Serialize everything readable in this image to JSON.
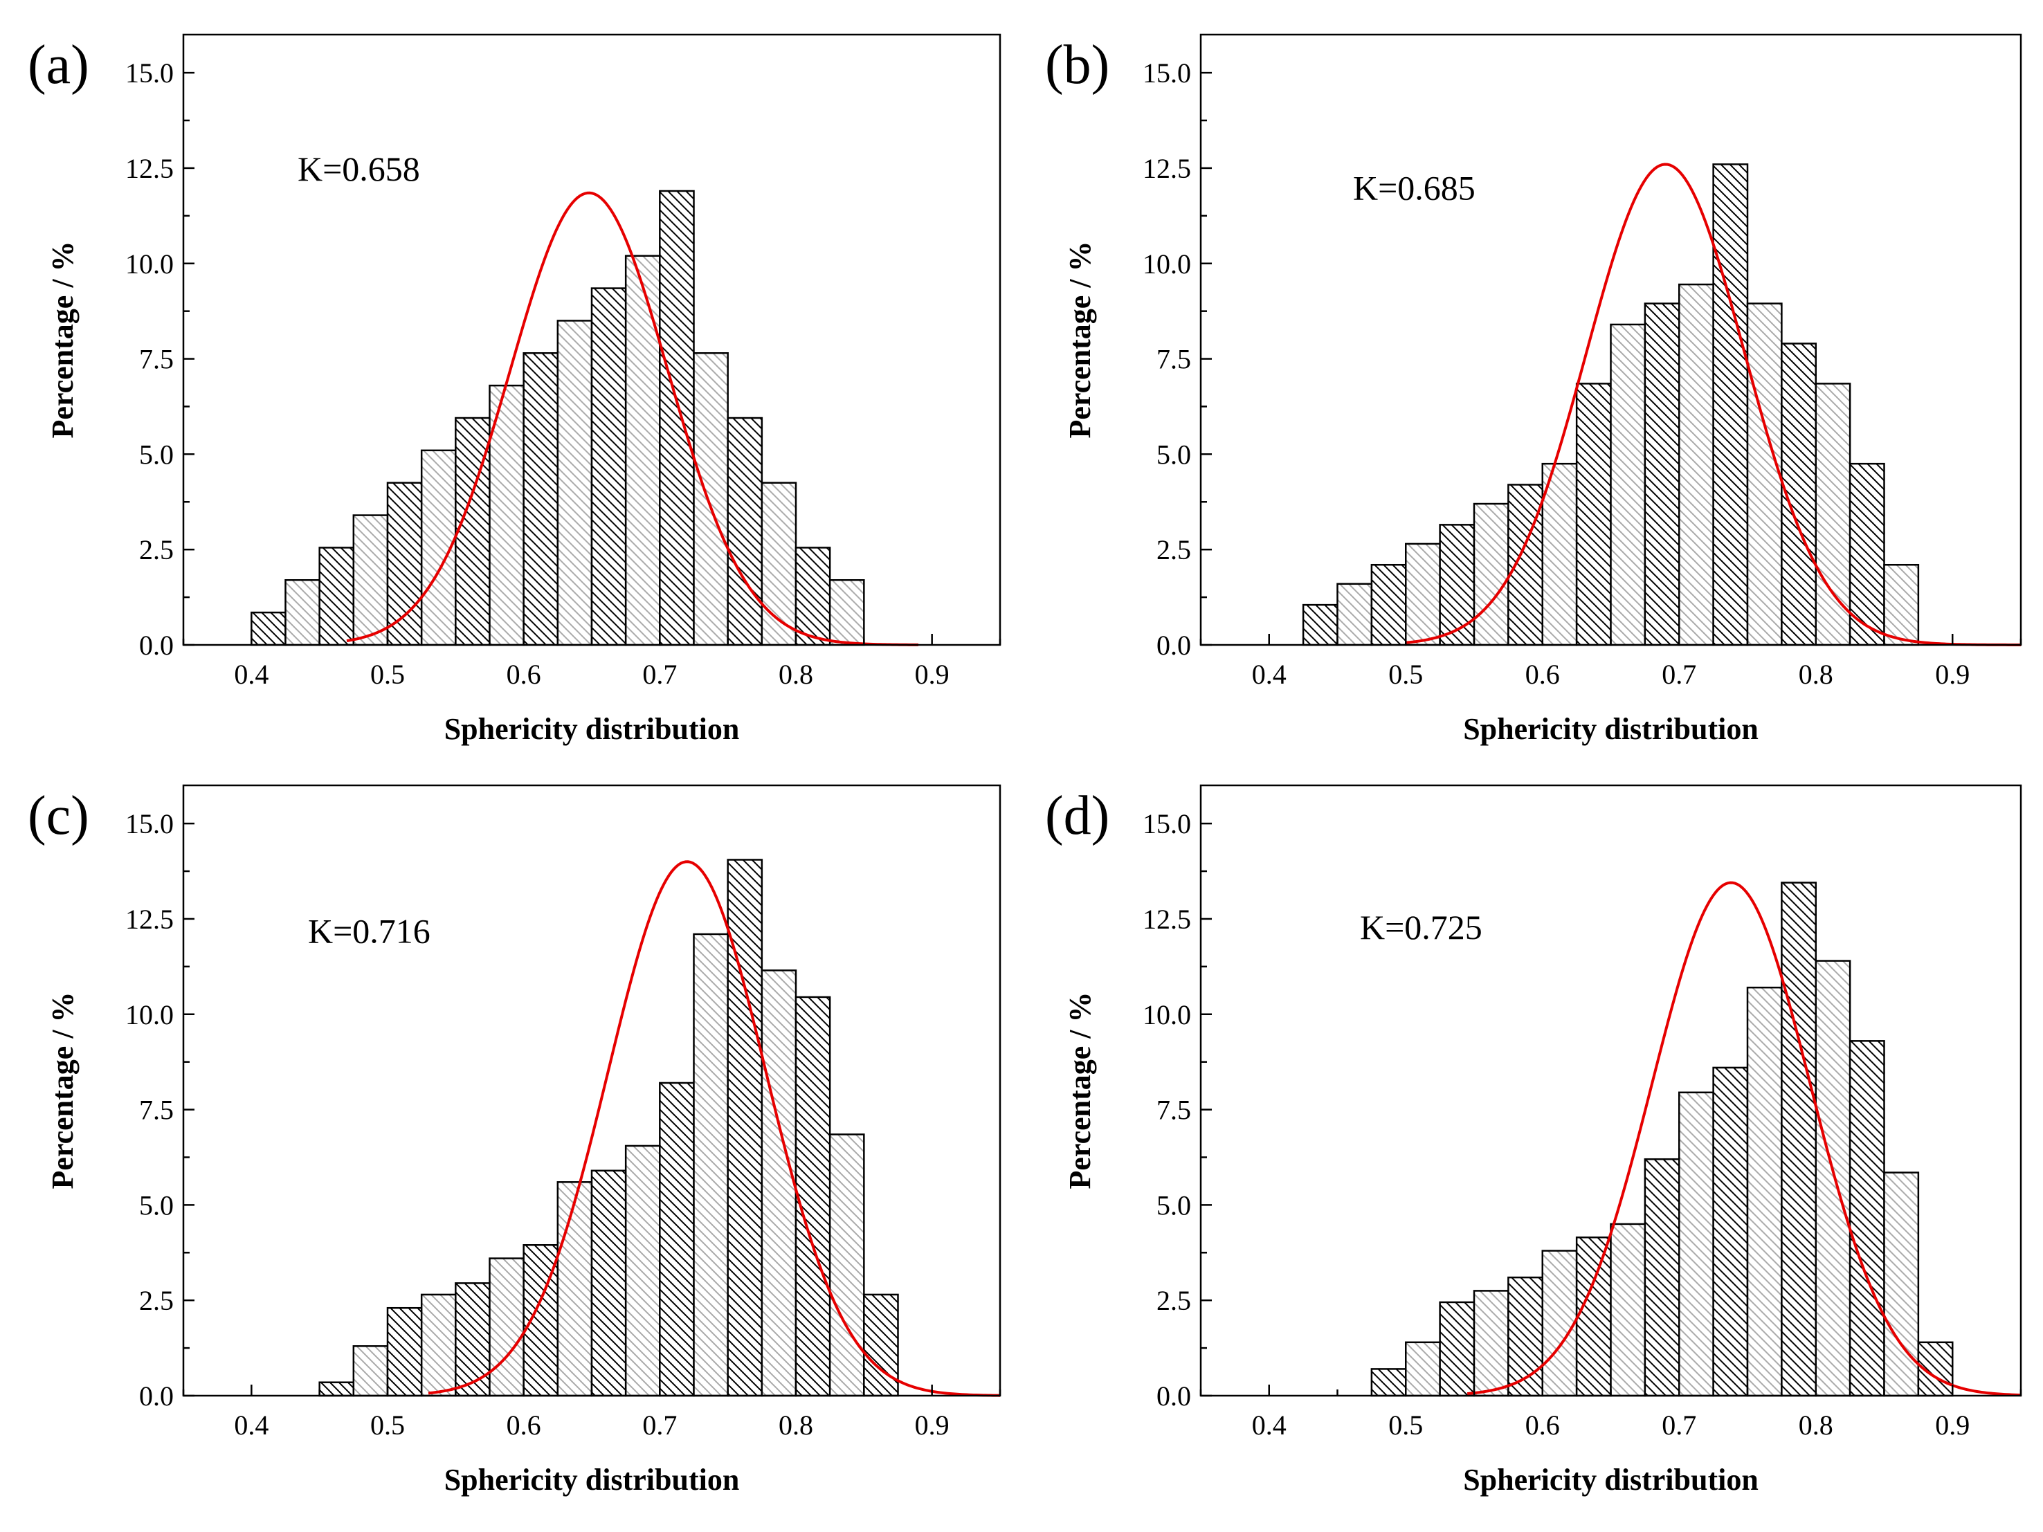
{
  "figure": {
    "colors": {
      "fit_curve": "#e60000",
      "bar_edge": "#000000",
      "hatch_dark": "#000000",
      "hatch_light": "#aaaaaa",
      "background": "#ffffff"
    }
  },
  "chart_data": [
    {
      "type": "bar",
      "panel": "(a)",
      "annotation": "K=0.658",
      "xlabel": "Sphericity distribution",
      "ylabel": "Percentage / %",
      "xlim": [
        0.35,
        0.95
      ],
      "ylim": [
        0,
        16
      ],
      "xticks": [
        "0.4",
        "0.5",
        "0.6",
        "0.7",
        "0.8",
        "0.9"
      ],
      "yticks": [
        "0.0",
        "2.5",
        "5.0",
        "7.5",
        "10.0",
        "12.5",
        "15.0"
      ],
      "bin_width": 0.025,
      "bin_starts": [
        0.4,
        0.425,
        0.45,
        0.475,
        0.5,
        0.525,
        0.55,
        0.575,
        0.6,
        0.625,
        0.65,
        0.675,
        0.7,
        0.725,
        0.75,
        0.775,
        0.8,
        0.825
      ],
      "values": [
        0.85,
        1.7,
        2.55,
        3.4,
        4.25,
        5.1,
        5.95,
        6.8,
        7.65,
        8.5,
        9.35,
        10.2,
        11.9,
        7.65,
        5.95,
        4.25,
        2.55,
        1.7
      ],
      "fit": {
        "mu": 0.648,
        "sigma": 0.058,
        "peak": 11.85,
        "x_start": 0.47,
        "x_end": 0.89
      }
    },
    {
      "type": "bar",
      "panel": "(b)",
      "annotation": "K=0.685",
      "xlabel": "Sphericity distribution",
      "ylabel": "Percentage / %",
      "xlim": [
        0.35,
        0.95
      ],
      "ylim": [
        0,
        16
      ],
      "xticks": [
        "0.4",
        "0.5",
        "0.6",
        "0.7",
        "0.8",
        "0.9"
      ],
      "yticks": [
        "0.0",
        "2.5",
        "5.0",
        "7.5",
        "10.0",
        "12.5",
        "15.0"
      ],
      "bin_width": 0.025,
      "bin_starts": [
        0.425,
        0.45,
        0.475,
        0.5,
        0.525,
        0.55,
        0.575,
        0.6,
        0.625,
        0.65,
        0.675,
        0.7,
        0.725,
        0.75,
        0.775,
        0.8,
        0.825,
        0.85
      ],
      "values": [
        1.05,
        1.6,
        2.1,
        2.65,
        3.15,
        3.7,
        4.2,
        4.75,
        6.85,
        8.4,
        8.95,
        9.45,
        12.6,
        8.95,
        7.9,
        6.85,
        4.75,
        2.1
      ],
      "fit": {
        "mu": 0.69,
        "sigma": 0.058,
        "peak": 12.6,
        "x_start": 0.5,
        "x_end": 0.95
      }
    },
    {
      "type": "bar",
      "panel": "(c)",
      "annotation": "K=0.716",
      "xlabel": "Sphericity distribution",
      "ylabel": "Percentage / %",
      "xlim": [
        0.35,
        0.95
      ],
      "ylim": [
        0,
        16
      ],
      "xticks": [
        "0.4",
        "0.5",
        "0.6",
        "0.7",
        "0.8",
        "0.9"
      ],
      "yticks": [
        "0.0",
        "2.5",
        "5.0",
        "7.5",
        "10.0",
        "12.5",
        "15.0"
      ],
      "bin_width": 0.025,
      "bin_starts": [
        0.45,
        0.475,
        0.5,
        0.525,
        0.55,
        0.575,
        0.6,
        0.625,
        0.65,
        0.675,
        0.7,
        0.725,
        0.75,
        0.775,
        0.8,
        0.825,
        0.85
      ],
      "values": [
        0.35,
        1.3,
        2.3,
        2.65,
        2.95,
        3.6,
        3.95,
        5.6,
        5.9,
        6.55,
        8.2,
        12.1,
        14.05,
        11.15,
        10.45,
        6.85,
        2.65
      ],
      "fit": {
        "mu": 0.72,
        "sigma": 0.058,
        "peak": 14.0,
        "x_start": 0.53,
        "x_end": 0.95
      }
    },
    {
      "type": "bar",
      "panel": "(d)",
      "annotation": "K=0.725",
      "xlabel": "Sphericity distribution",
      "ylabel": "Percentage / %",
      "xlim": [
        0.35,
        0.95
      ],
      "ylim": [
        0,
        16
      ],
      "xticks": [
        "0.4",
        "0.5",
        "0.6",
        "0.7",
        "0.8",
        "0.9"
      ],
      "yticks": [
        "0.0",
        "2.5",
        "5.0",
        "7.5",
        "10.0",
        "12.5",
        "15.0"
      ],
      "bin_width": 0.025,
      "bin_starts": [
        0.475,
        0.5,
        0.525,
        0.55,
        0.575,
        0.6,
        0.625,
        0.65,
        0.675,
        0.7,
        0.725,
        0.75,
        0.775,
        0.8,
        0.825,
        0.85,
        0.875
      ],
      "values": [
        0.7,
        1.4,
        2.45,
        2.75,
        3.1,
        3.8,
        4.15,
        4.5,
        6.2,
        7.95,
        8.6,
        10.7,
        13.45,
        11.4,
        9.3,
        5.85,
        1.4
      ],
      "fit": {
        "mu": 0.738,
        "sigma": 0.058,
        "peak": 13.45,
        "x_start": 0.545,
        "x_end": 0.95
      }
    }
  ]
}
